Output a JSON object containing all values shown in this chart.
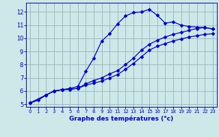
{
  "xlabel": "Graphe des températures (°c)",
  "bg_color": "#cce8e8",
  "line_color": "#0000cc",
  "grid_color": "#99bbbb",
  "xlim": [
    -0.5,
    23.5
  ],
  "ylim": [
    4.8,
    12.7
  ],
  "xticks": [
    0,
    1,
    2,
    3,
    4,
    5,
    6,
    7,
    8,
    9,
    10,
    11,
    12,
    13,
    14,
    15,
    16,
    17,
    18,
    19,
    20,
    21,
    22,
    23
  ],
  "yticks": [
    5,
    6,
    7,
    8,
    9,
    10,
    11,
    12
  ],
  "line1_x": [
    0,
    1,
    2,
    3,
    4,
    5,
    6,
    7,
    8,
    9,
    10,
    11,
    12,
    13,
    14,
    15,
    16,
    17,
    18,
    19,
    20,
    21,
    22,
    23
  ],
  "line1_y": [
    5.1,
    5.3,
    5.7,
    6.0,
    6.1,
    6.2,
    6.35,
    7.5,
    8.5,
    9.8,
    10.35,
    11.1,
    11.7,
    11.95,
    12.0,
    12.2,
    11.75,
    11.15,
    11.25,
    11.0,
    10.9,
    10.85,
    10.82,
    10.7
  ],
  "line2_x": [
    0,
    2,
    3,
    4,
    5,
    6,
    7,
    8,
    9,
    10,
    11,
    12,
    13,
    14,
    15,
    16,
    17,
    18,
    19,
    20,
    21,
    22,
    23
  ],
  "line2_y": [
    5.1,
    5.7,
    6.0,
    6.1,
    6.15,
    6.2,
    6.55,
    6.8,
    7.0,
    7.3,
    7.55,
    8.0,
    8.5,
    9.1,
    9.55,
    9.85,
    10.1,
    10.3,
    10.45,
    10.6,
    10.75,
    10.82,
    10.72
  ],
  "line3_x": [
    0,
    2,
    3,
    4,
    5,
    6,
    7,
    8,
    9,
    10,
    11,
    12,
    13,
    14,
    15,
    16,
    17,
    18,
    19,
    20,
    21,
    22,
    23
  ],
  "line3_y": [
    5.1,
    5.7,
    6.0,
    6.1,
    6.12,
    6.2,
    6.45,
    6.6,
    6.75,
    7.0,
    7.25,
    7.65,
    8.1,
    8.6,
    9.1,
    9.4,
    9.6,
    9.8,
    9.95,
    10.1,
    10.2,
    10.3,
    10.35
  ]
}
